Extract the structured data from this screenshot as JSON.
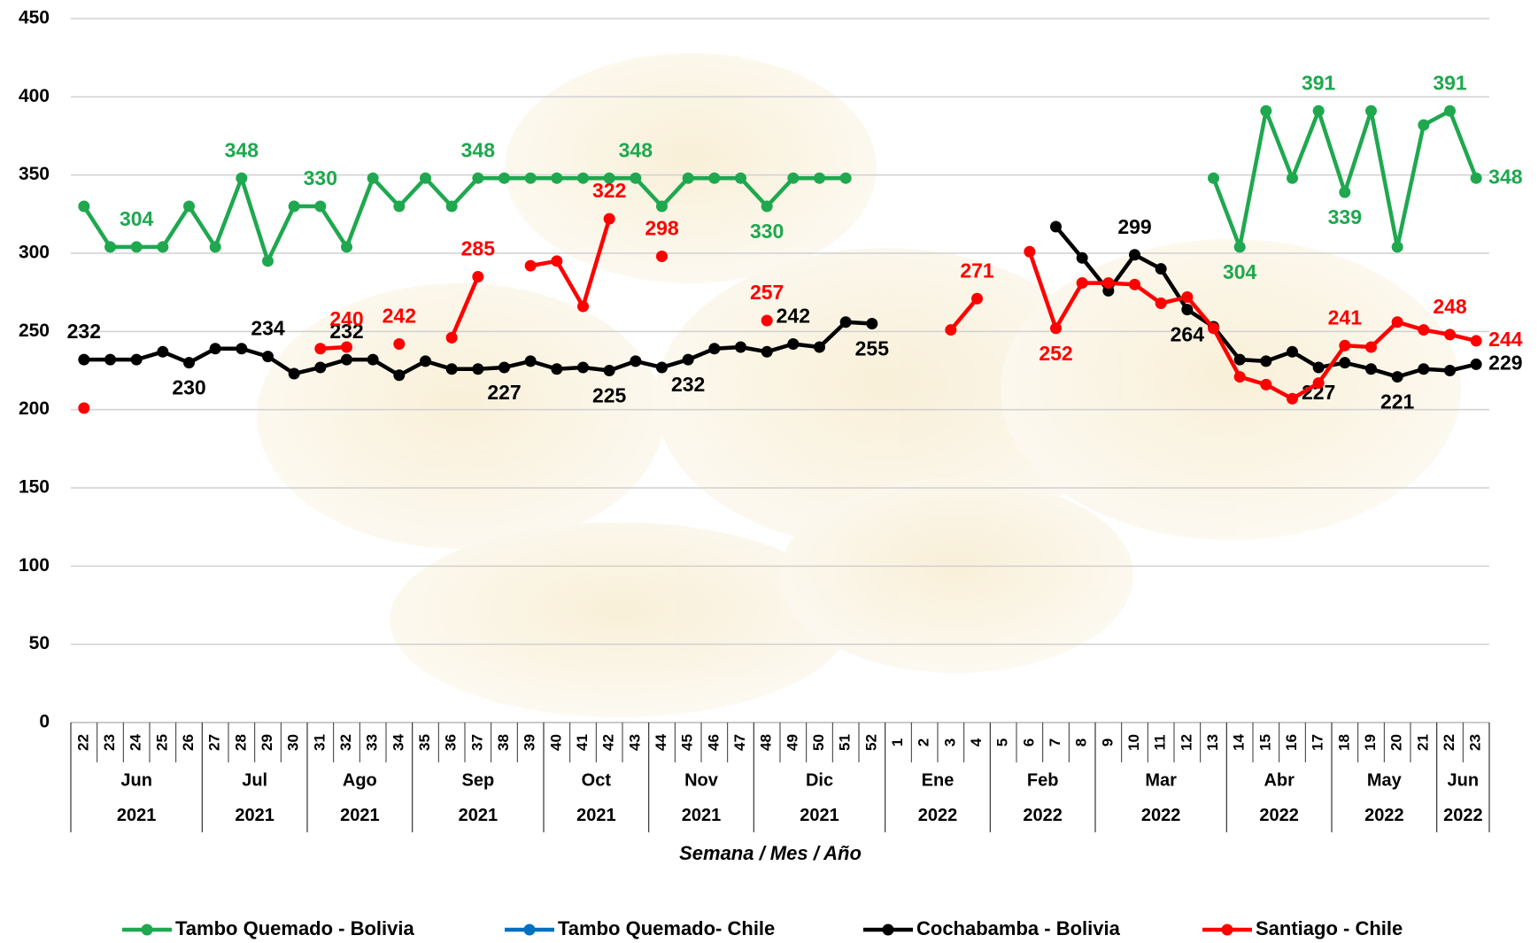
{
  "chart_data": {
    "type": "line",
    "x_label": "Semana / Mes / Año",
    "groups": [
      {
        "month": "Jun",
        "year": "2021",
        "weeks": [
          "22",
          "23",
          "24",
          "25",
          "26"
        ]
      },
      {
        "month": "Jul",
        "year": "2021",
        "weeks": [
          "27",
          "28",
          "29",
          "30"
        ]
      },
      {
        "month": "Ago",
        "year": "2021",
        "weeks": [
          "31",
          "32",
          "33",
          "34"
        ]
      },
      {
        "month": "Sep",
        "year": "2021",
        "weeks": [
          "35",
          "36",
          "37",
          "38",
          "39"
        ]
      },
      {
        "month": "Oct",
        "year": "2021",
        "weeks": [
          "40",
          "41",
          "42",
          "43"
        ]
      },
      {
        "month": "Nov",
        "year": "2021",
        "weeks": [
          "44",
          "45",
          "46",
          "47"
        ]
      },
      {
        "month": "Dic",
        "year": "2021",
        "weeks": [
          "48",
          "49",
          "50",
          "51",
          "52"
        ]
      },
      {
        "month": "Ene",
        "year": "2022",
        "weeks": [
          "1",
          "2",
          "3",
          "4"
        ]
      },
      {
        "month": "Feb",
        "year": "2022",
        "weeks": [
          "5",
          "6",
          "7",
          "8"
        ]
      },
      {
        "month": "Mar",
        "year": "2022",
        "weeks": [
          "9",
          "10",
          "11",
          "12",
          "13"
        ]
      },
      {
        "month": "Abr",
        "year": "2022",
        "weeks": [
          "14",
          "15",
          "16",
          "17"
        ]
      },
      {
        "month": "May",
        "year": "2022",
        "weeks": [
          "18",
          "19",
          "20",
          "21"
        ]
      },
      {
        "month": "Jun",
        "year": "2022",
        "weeks": [
          "22",
          "23"
        ]
      }
    ],
    "ylim": [
      0,
      450
    ],
    "yticks": [
      0,
      50,
      100,
      150,
      200,
      250,
      300,
      350,
      400,
      450
    ],
    "grid": true,
    "series": [
      {
        "name": "Tambo Quemado - Bolivia",
        "color": "#1fa84f",
        "values": [
          330,
          304,
          304,
          304,
          330,
          304,
          348,
          295,
          330,
          330,
          304,
          348,
          330,
          348,
          330,
          348,
          348,
          348,
          348,
          348,
          348,
          348,
          330,
          348,
          348,
          348,
          330,
          348,
          348,
          348,
          null,
          null,
          null,
          null,
          null,
          null,
          null,
          null,
          null,
          null,
          null,
          null,
          null,
          348,
          304,
          391,
          348,
          391,
          339,
          391,
          304,
          382,
          391,
          348
        ],
        "value_labels": [
          null,
          null,
          "304",
          null,
          null,
          null,
          "348",
          null,
          null,
          "330",
          null,
          null,
          null,
          null,
          null,
          "348",
          null,
          null,
          null,
          null,
          null,
          "348",
          null,
          null,
          null,
          null,
          "330",
          null,
          null,
          null,
          null,
          null,
          null,
          null,
          null,
          null,
          null,
          null,
          null,
          null,
          null,
          null,
          null,
          null,
          "304",
          null,
          null,
          "391",
          "339",
          null,
          null,
          null,
          "391",
          "348"
        ]
      },
      {
        "name": "Tambo Quemado- Chile",
        "color": "#0070c0",
        "values": [
          null,
          null,
          null,
          null,
          null,
          null,
          null,
          null,
          null,
          null,
          null,
          null,
          null,
          null,
          null,
          null,
          null,
          null,
          null,
          null,
          null,
          null,
          null,
          null,
          null,
          null,
          null,
          null,
          null,
          null,
          null,
          null,
          null,
          null,
          null,
          null,
          null,
          null,
          null,
          null,
          null,
          null,
          null,
          null,
          null,
          null,
          null,
          null,
          null,
          null,
          null,
          null,
          null,
          null
        ]
      },
      {
        "name": "Cochabamba - Bolivia",
        "color": "#000000",
        "values": [
          232,
          232,
          232,
          237,
          230,
          239,
          239,
          234,
          223,
          227,
          232,
          232,
          222,
          231,
          226,
          226,
          227,
          231,
          226,
          227,
          225,
          231,
          227,
          232,
          239,
          240,
          237,
          242,
          240,
          256,
          255,
          null,
          null,
          null,
          null,
          null,
          null,
          317,
          297,
          276,
          299,
          290,
          264,
          253,
          232,
          231,
          237,
          227,
          230,
          226,
          221,
          226,
          225,
          229
        ],
        "value_labels": [
          "232",
          null,
          null,
          null,
          "230",
          null,
          null,
          "234",
          null,
          null,
          "232",
          null,
          null,
          null,
          null,
          null,
          "227",
          null,
          null,
          null,
          "225",
          null,
          null,
          "232",
          null,
          null,
          null,
          "242",
          null,
          null,
          "255",
          null,
          null,
          null,
          null,
          null,
          null,
          null,
          null,
          null,
          "299",
          null,
          "264",
          null,
          null,
          null,
          null,
          "227",
          null,
          null,
          "221",
          null,
          null,
          "229"
        ]
      },
      {
        "name": "Santiago - Chile",
        "color": "#ff0000",
        "values": [
          201,
          null,
          null,
          null,
          null,
          null,
          null,
          null,
          null,
          239,
          240,
          null,
          242,
          null,
          246,
          285,
          null,
          292,
          295,
          266,
          322,
          null,
          298,
          null,
          null,
          null,
          257,
          null,
          null,
          null,
          null,
          null,
          null,
          251,
          271,
          null,
          301,
          252,
          281,
          281,
          280,
          268,
          272,
          252,
          221,
          216,
          207,
          217,
          241,
          240,
          256,
          251,
          248,
          244
        ],
        "value_labels": [
          null,
          null,
          null,
          null,
          null,
          null,
          null,
          null,
          null,
          null,
          "240",
          null,
          "242",
          null,
          null,
          "285",
          null,
          null,
          null,
          null,
          "322",
          null,
          "298",
          null,
          null,
          null,
          "257",
          null,
          null,
          null,
          null,
          null,
          null,
          null,
          "271",
          null,
          null,
          "252",
          null,
          null,
          null,
          null,
          null,
          null,
          null,
          null,
          null,
          null,
          "241",
          null,
          null,
          null,
          "248",
          "244"
        ]
      }
    ]
  }
}
